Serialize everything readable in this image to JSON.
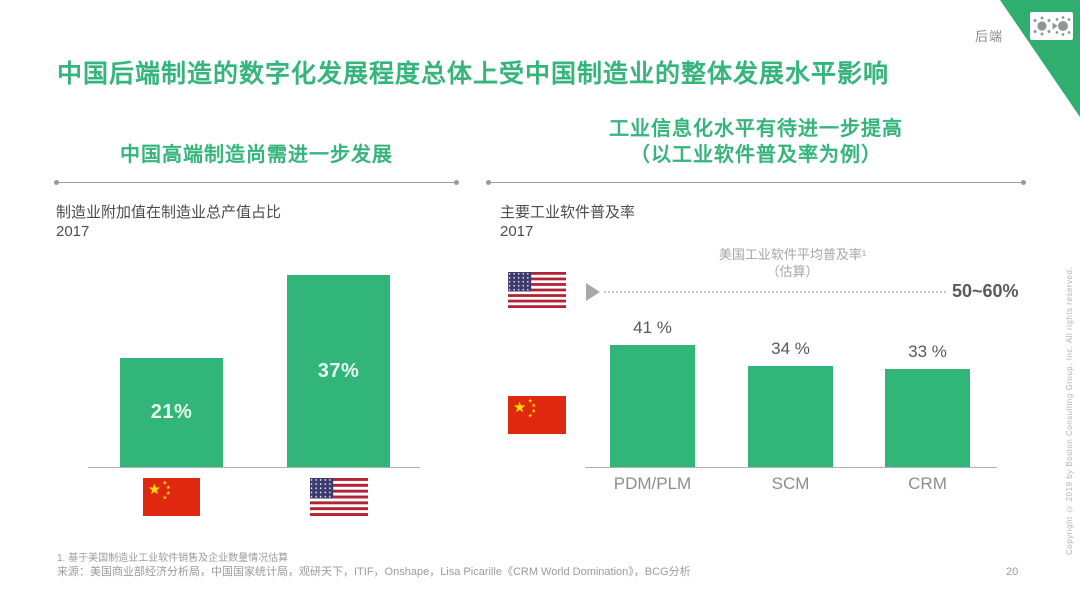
{
  "page": {
    "corner_tag": "后端",
    "title": "中国后端制造的数字化发展程度总体上受中国制造业的整体发展水平影响",
    "page_number": "20",
    "copyright": "Copyright © 2019 by Boston Consulting Group, Inc. All rights reserved.",
    "footnote": "1. 基于美国制造业工业软件销售及企业数量情况估算",
    "source": "来源：美国商业部经济分析局，中国国家统计局，观研天下，ITIF，Onshape，Lisa Picarille《CRM World Domination》，BCG分析"
  },
  "left_panel": {
    "header": "中国高端制造尚需进一步发展",
    "chart_title": "制造业附加值在制造业总产值占比",
    "chart_year": "2017"
  },
  "right_panel": {
    "header_line1": "工业信息化水平有待进一步提高",
    "header_line2": "（以工业软件普及率为例）",
    "chart_title": "主要工业软件普及率",
    "chart_year": "2017",
    "benchmark_label_line1": "美国工业软件平均普及率¹",
    "benchmark_label_line2": "（估算）",
    "benchmark_value": "50~60%"
  },
  "colors": {
    "accent_green": "#35b57b",
    "bar_green": "#31b578",
    "china_flag_red": "#de2910",
    "china_flag_yellow": "#ffde00",
    "us_flag_red": "#b22234",
    "us_flag_blue": "#3c3b6e"
  },
  "chart_data": [
    {
      "type": "bar",
      "title": "制造业附加值在制造业总产值占比",
      "subtitle": "2017",
      "categories": [
        "中国",
        "美国"
      ],
      "category_icons": [
        "china-flag",
        "us-flag"
      ],
      "values": [
        21,
        37
      ],
      "value_labels": [
        "21%",
        "37%"
      ],
      "unit": "%",
      "ylim": [
        0,
        40
      ],
      "grid": false,
      "legend": "none"
    },
    {
      "type": "bar",
      "title": "主要工业软件普及率",
      "subtitle": "2017",
      "categories": [
        "PDM/PLM",
        "SCM",
        "CRM"
      ],
      "series_icon": "china-flag",
      "values": [
        41,
        34,
        33
      ],
      "value_labels": [
        "41 %",
        "34 %",
        "33 %"
      ],
      "unit": "%",
      "ylim": [
        0,
        60
      ],
      "grid": false,
      "legend": "none",
      "benchmark": {
        "label": "美国工业软件平均普及率（估算）",
        "icon": "us-flag",
        "value_text": "50~60%",
        "range": [
          50,
          60
        ],
        "style": "dotted-line"
      }
    }
  ]
}
